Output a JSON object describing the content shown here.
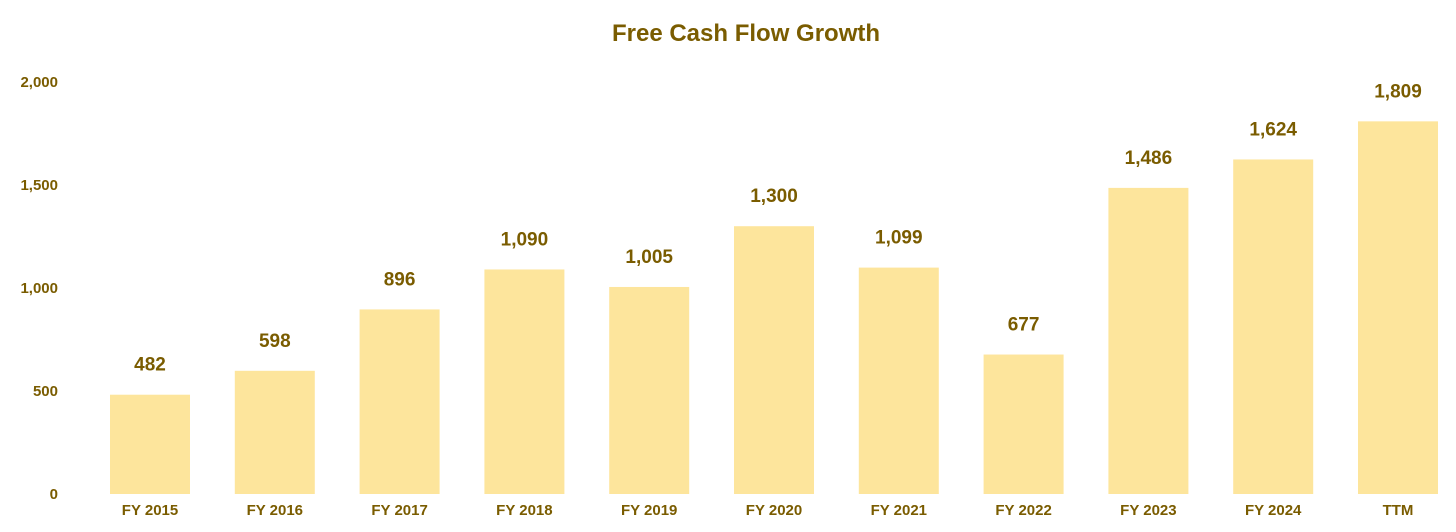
{
  "colors": {
    "text": "#7A5C00",
    "bar": "#FDE59C",
    "background": "#FFFFFF"
  },
  "chart_data": {
    "type": "bar",
    "title": "Free Cash Flow Growth",
    "xlabel": "",
    "ylabel": "",
    "categories": [
      "FY 2015",
      "FY 2016",
      "FY 2017",
      "FY 2018",
      "FY 2019",
      "FY 2020",
      "FY 2021",
      "FY 2022",
      "FY 2023",
      "FY 2024",
      "TTM"
    ],
    "values": [
      482,
      598,
      896,
      1090,
      1005,
      1300,
      1099,
      677,
      1486,
      1624,
      1809
    ],
    "data_labels": [
      "482",
      "598",
      "896",
      "1,090",
      "1,005",
      "1,300",
      "1,099",
      "677",
      "1,486",
      "1,624",
      "1,809"
    ],
    "ylim": [
      0,
      2000
    ],
    "yticks": [
      0,
      500,
      1000,
      1500,
      2000
    ],
    "ytick_labels": [
      "0",
      "500",
      "1,000",
      "1,500",
      "2,000"
    ],
    "grid": false,
    "legend": "none"
  }
}
